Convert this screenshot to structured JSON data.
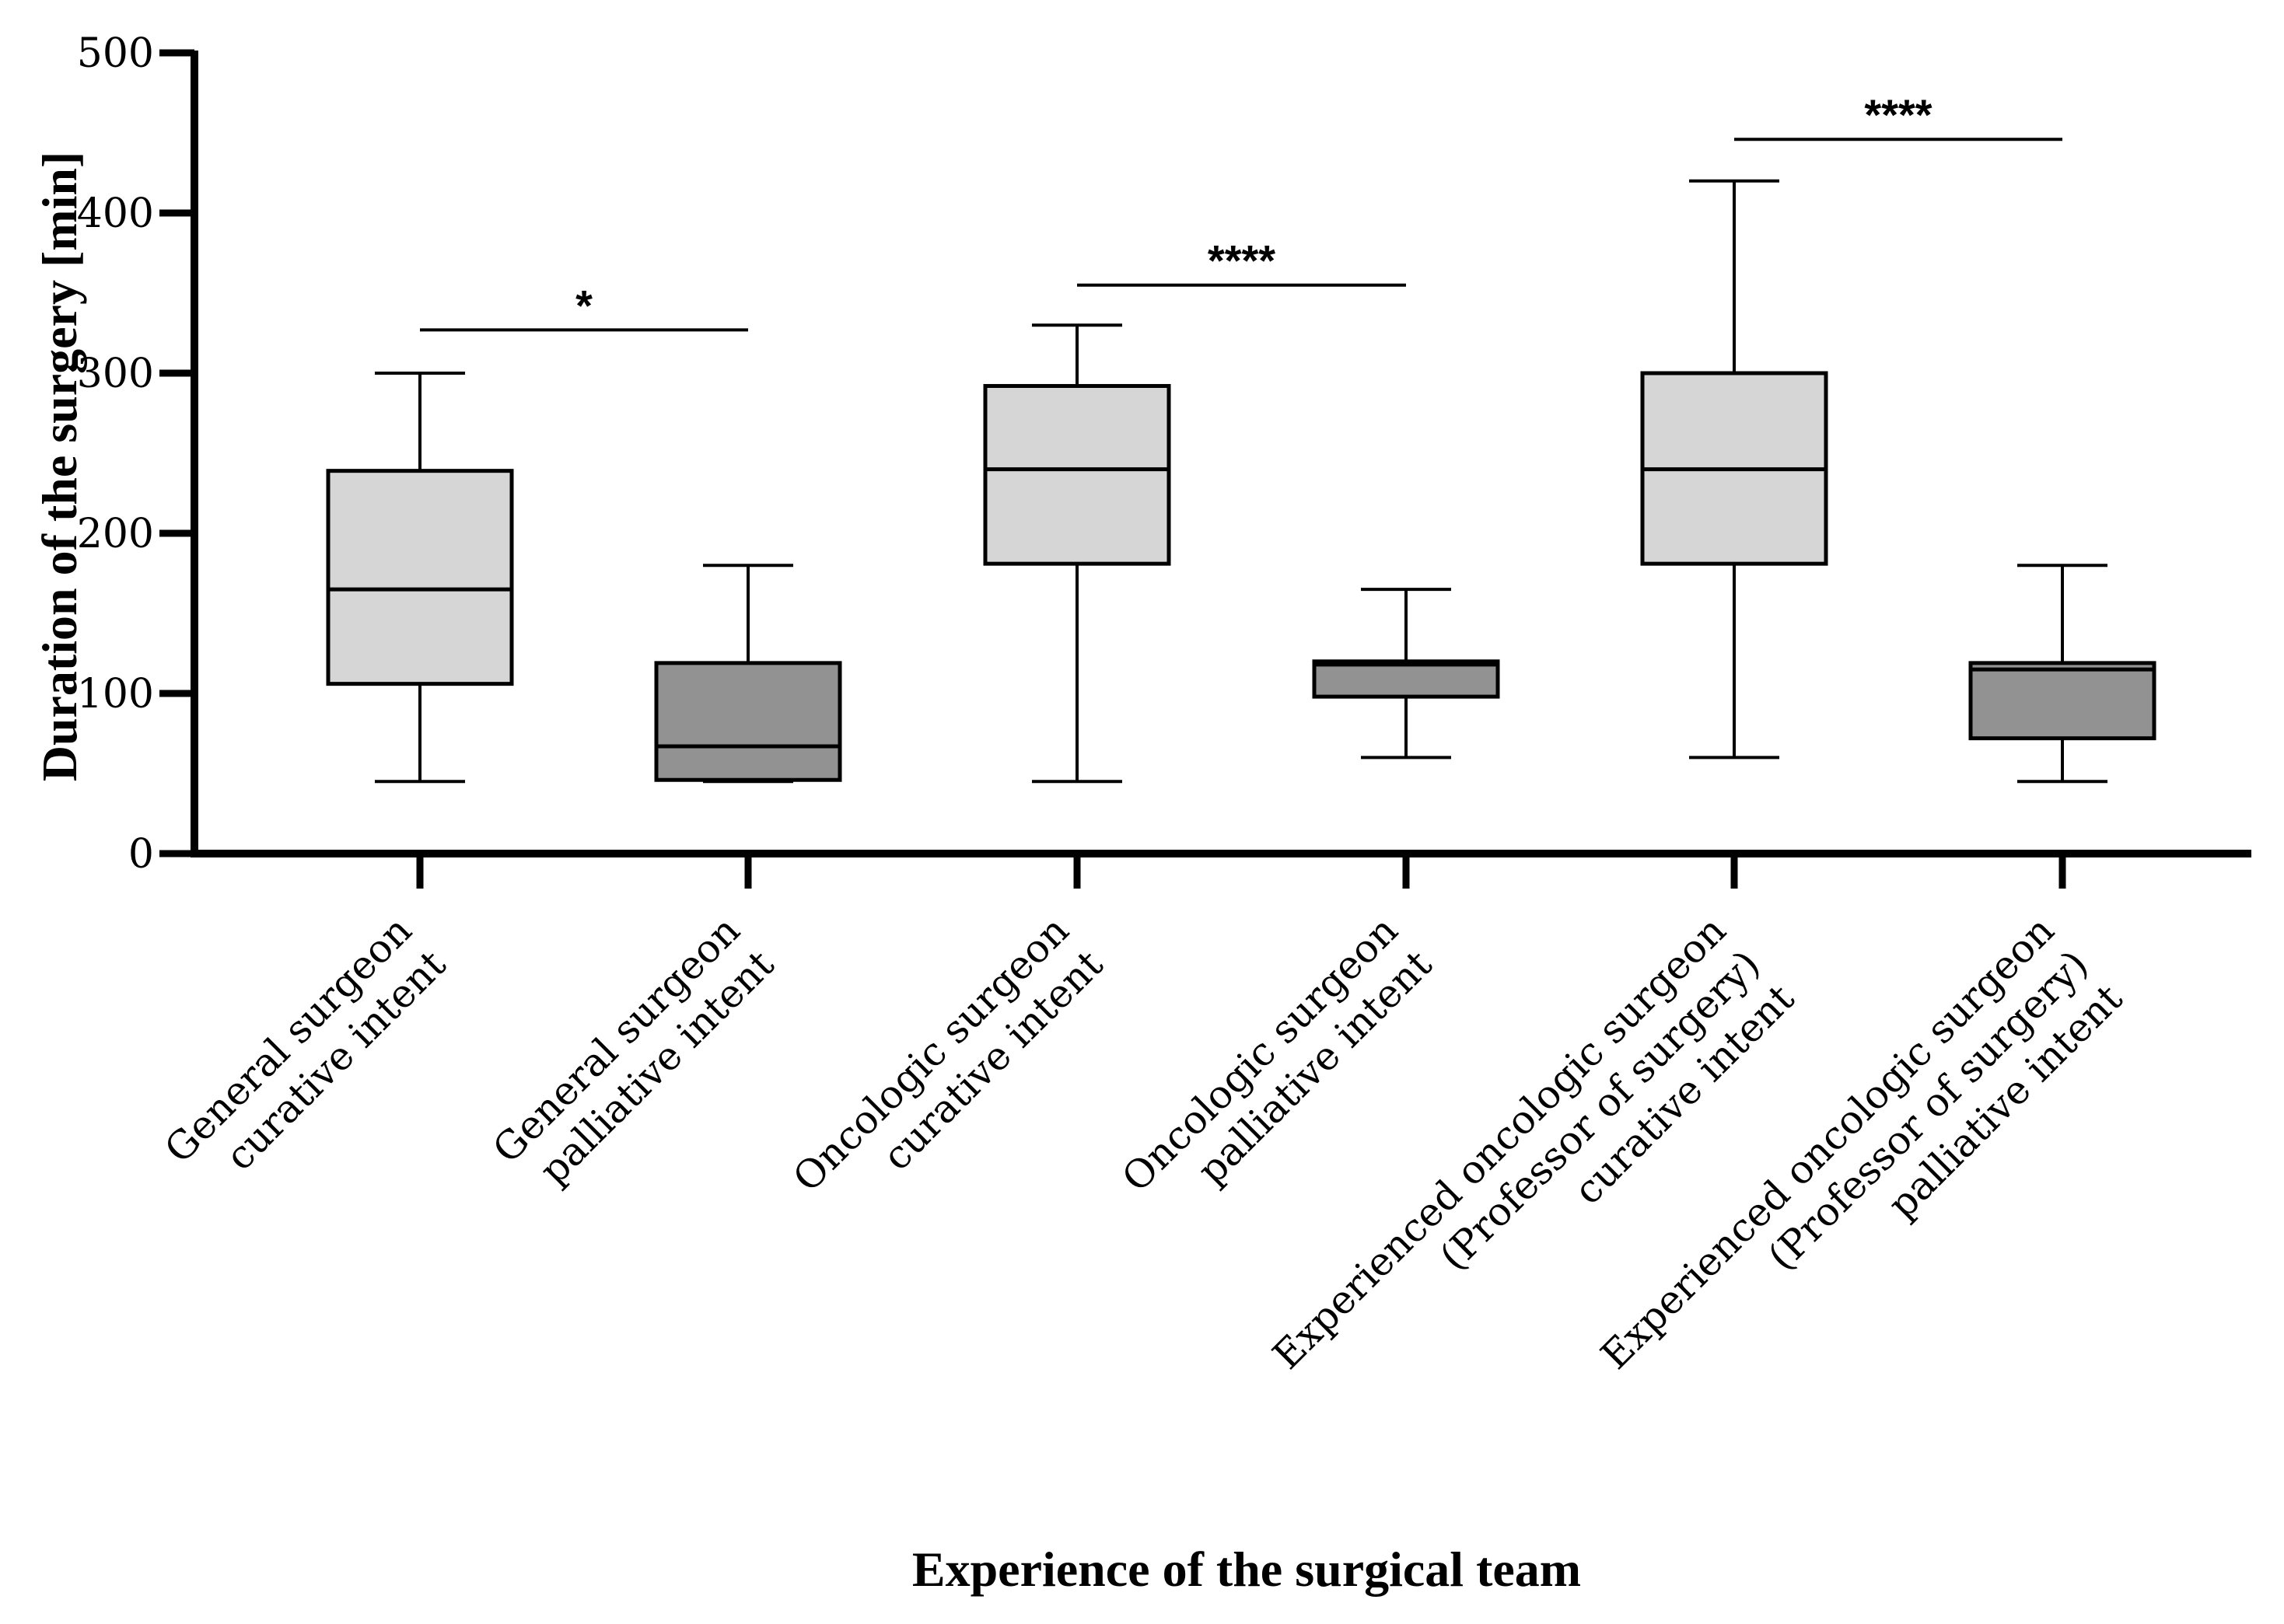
{
  "chart_data": {
    "type": "box",
    "xlabel": "Experience of the surgical team",
    "ylabel": "Duration of the surgery [min]",
    "ylim": [
      0,
      500
    ],
    "yticks": [
      0,
      100,
      200,
      300,
      400,
      500
    ],
    "colors": {
      "curative": "#d6d6d6",
      "palliative": "#929292",
      "stroke": "#000000"
    },
    "groups": [
      {
        "label_lines": [
          "General surgeon",
          "curative intent"
        ],
        "intent": "curative",
        "min": 45,
        "q1": 106,
        "median": 165,
        "q3": 239,
        "max": 300
      },
      {
        "label_lines": [
          "General surgeon",
          "palliative intent"
        ],
        "intent": "palliative",
        "min": 45,
        "q1": 46,
        "median": 67,
        "q3": 119,
        "max": 180
      },
      {
        "label_lines": [
          "Oncologic surgeon",
          "curative intent"
        ],
        "intent": "curative",
        "min": 45,
        "q1": 181,
        "median": 240,
        "q3": 292,
        "max": 330
      },
      {
        "label_lines": [
          "Oncologic surgeon",
          "palliative intent"
        ],
        "intent": "palliative",
        "min": 60,
        "q1": 98,
        "median": 118,
        "q3": 120,
        "max": 165
      },
      {
        "label_lines": [
          "Experienced oncologic surgeon",
          "(Professor of surgery)",
          "curative intent"
        ],
        "intent": "curative",
        "min": 60,
        "q1": 181,
        "median": 240,
        "q3": 300,
        "max": 420
      },
      {
        "label_lines": [
          "Experienced oncologic surgeon",
          "(Professor of surgery)",
          "palliative intent"
        ],
        "intent": "palliative",
        "min": 45,
        "q1": 72,
        "median": 115,
        "q3": 119,
        "max": 180
      }
    ],
    "significance": [
      {
        "from": 0,
        "to": 1,
        "y": 327,
        "label": "*"
      },
      {
        "from": 2,
        "to": 3,
        "y": 355,
        "label": "****"
      },
      {
        "from": 4,
        "to": 5,
        "y": 446,
        "label": "****"
      }
    ]
  }
}
